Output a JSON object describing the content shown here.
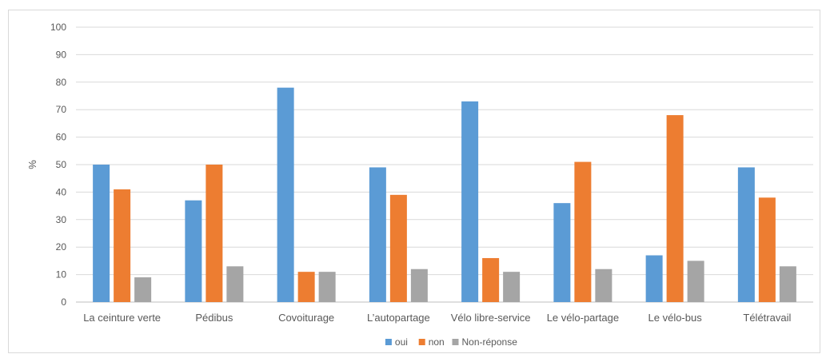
{
  "chart_data": {
    "type": "bar",
    "ylabel": "%",
    "ylim": [
      0,
      100
    ],
    "yticks": [
      0,
      10,
      20,
      30,
      40,
      50,
      60,
      70,
      80,
      90,
      100
    ],
    "grid": true,
    "legend_position": "bottom",
    "categories": [
      "La ceinture verte",
      "Pédibus",
      "Covoiturage",
      "L’autopartage",
      "Vélo libre-service",
      "Le vélo-partage",
      "Le vélo-bus",
      "Télétravail"
    ],
    "series": [
      {
        "name": "oui",
        "color": "#5b9bd5",
        "values": [
          50,
          37,
          78,
          49,
          73,
          36,
          17,
          49
        ]
      },
      {
        "name": "non",
        "color": "#ed7d31",
        "values": [
          41,
          50,
          11,
          39,
          16,
          51,
          68,
          38
        ]
      },
      {
        "name": "Non-réponse",
        "color": "#a5a5a5",
        "values": [
          9,
          13,
          11,
          12,
          11,
          12,
          15,
          13
        ]
      }
    ]
  }
}
